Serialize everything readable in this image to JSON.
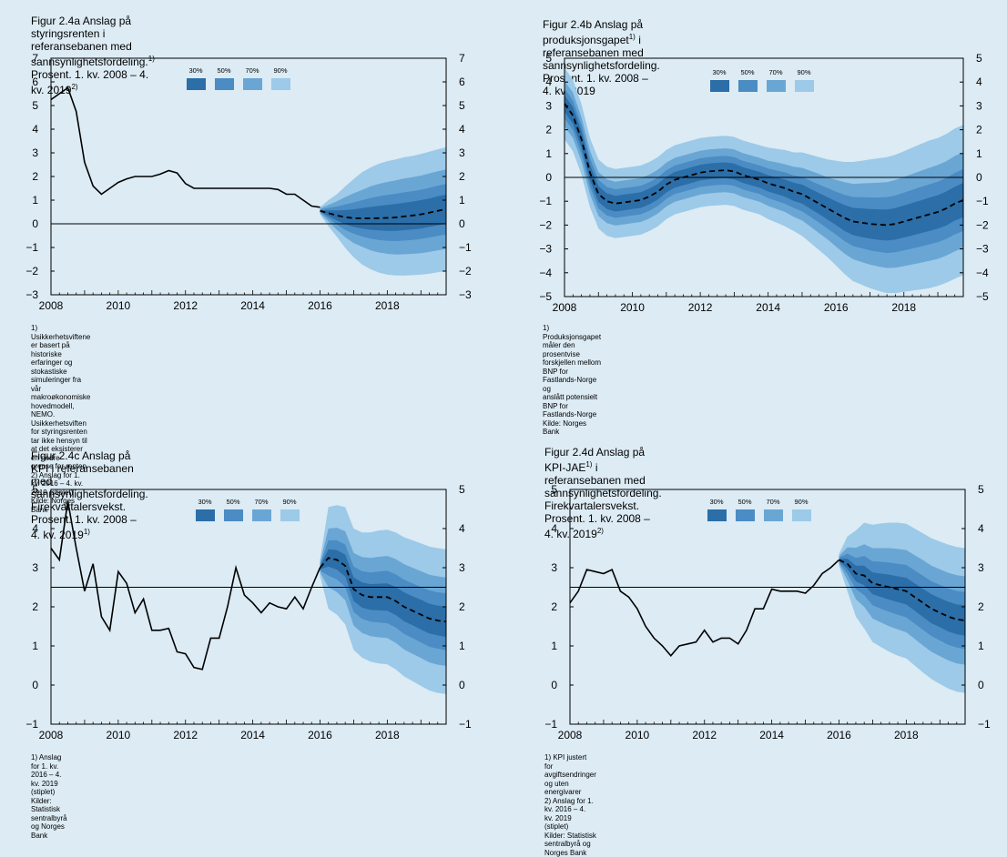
{
  "colors": {
    "background": "#dcebf4",
    "band30": "#2b6ea8",
    "band50": "#4a8cc3",
    "band70": "#6aa6d4",
    "band90": "#9ccae8",
    "line": "#000000"
  },
  "chart_data": [
    {
      "id": "a",
      "type": "area",
      "title": "Figur 2.4a Anslag på styringsrenten i referansebanen med",
      "title2_pre": "sannsynlighetsfordeling.",
      "title2_sup1": "1)",
      "title2_mid": " Prosent. 1. kv. 2008 – 4. kv. 2019",
      "title2_sup2": "2)",
      "footnotes": "1) Usikkerhetsviftene er basert på historiske erfaringer og stokastiske simuleringer fra vår makroøkonomiske\nhovedmodell, NEMO. Usikkerhetsviften for styringsrenten tar ikke hensyn til at det eksisterer en nedre\ngrense for renten\n2) Anslag for 1. kv. 2016 – 4. kv. 2019 (stiplet)\nKilde: Norges Bank",
      "legend": [
        "30%",
        "50%",
        "70%",
        "90%"
      ],
      "ylim": [
        -3,
        7
      ],
      "yticks": [
        "−3",
        "−2",
        "−1",
        "0",
        "1",
        "2",
        "3",
        "4",
        "5",
        "6",
        "7"
      ],
      "xticks": [
        "2008",
        "2010",
        "2012",
        "2014",
        "2016",
        "2018"
      ],
      "xlim": [
        2008,
        2019.75
      ],
      "refline": 0,
      "history": [
        [
          2008,
          5.25
        ],
        [
          2008.25,
          5.5
        ],
        [
          2008.5,
          5.75
        ],
        [
          2008.75,
          4.75
        ],
        [
          2009,
          2.6
        ],
        [
          2009.25,
          1.6
        ],
        [
          2009.5,
          1.25
        ],
        [
          2009.75,
          1.5
        ],
        [
          2010,
          1.75
        ],
        [
          2010.25,
          1.9
        ],
        [
          2010.5,
          2.0
        ],
        [
          2010.75,
          2.0
        ],
        [
          2011,
          2.0
        ],
        [
          2011.25,
          2.1
        ],
        [
          2011.5,
          2.25
        ],
        [
          2011.75,
          2.15
        ],
        [
          2012,
          1.7
        ],
        [
          2012.25,
          1.5
        ],
        [
          2012.5,
          1.5
        ],
        [
          2012.75,
          1.5
        ],
        [
          2013,
          1.5
        ],
        [
          2013.25,
          1.5
        ],
        [
          2013.5,
          1.5
        ],
        [
          2013.75,
          1.5
        ],
        [
          2014,
          1.5
        ],
        [
          2014.25,
          1.5
        ],
        [
          2014.5,
          1.5
        ],
        [
          2014.75,
          1.45
        ],
        [
          2015,
          1.25
        ],
        [
          2015.25,
          1.25
        ],
        [
          2015.5,
          1.0
        ],
        [
          2015.75,
          0.75
        ],
        [
          2016,
          0.7
        ]
      ],
      "forecast": {
        "x": [
          2016,
          2016.25,
          2016.5,
          2016.75,
          2017,
          2017.25,
          2017.5,
          2017.75,
          2018,
          2018.25,
          2018.5,
          2018.75,
          2019,
          2019.25,
          2019.5,
          2019.75
        ],
        "y": [
          0.55,
          0.45,
          0.35,
          0.28,
          0.24,
          0.23,
          0.23,
          0.24,
          0.25,
          0.27,
          0.31,
          0.35,
          0.4,
          0.47,
          0.55,
          0.62
        ],
        "w90": [
          0.15,
          0.55,
          0.9,
          1.3,
          1.65,
          1.95,
          2.15,
          2.3,
          2.4,
          2.45,
          2.5,
          2.52,
          2.55,
          2.58,
          2.6,
          2.62
        ],
        "w70": [
          0.1,
          0.35,
          0.6,
          0.85,
          1.05,
          1.2,
          1.35,
          1.45,
          1.52,
          1.57,
          1.6,
          1.62,
          1.64,
          1.66,
          1.67,
          1.68
        ],
        "w50": [
          0.06,
          0.22,
          0.38,
          0.54,
          0.66,
          0.77,
          0.86,
          0.92,
          0.97,
          1.0,
          1.02,
          1.03,
          1.04,
          1.05,
          1.06,
          1.07
        ],
        "w30": [
          0.03,
          0.12,
          0.21,
          0.3,
          0.37,
          0.43,
          0.48,
          0.52,
          0.55,
          0.57,
          0.58,
          0.59,
          0.6,
          0.6,
          0.61,
          0.61
        ]
      }
    },
    {
      "id": "b",
      "type": "area",
      "title_pre": "Figur 2.4b Anslag på produksjonsgapet",
      "title_sup": "1)",
      "title_post": " i referansebanen med",
      "title2": "sannsynlighetsfordeling. Prosent. 1. kv. 2008 – 4. kv. 2019",
      "footnotes": "1) Produksjonsgapet måler den prosentvise forskjellen mellom BNP for Fastlands-Norge og\nanslått potensielt BNP for Fastlands-Norge\nKilde: Norges Bank",
      "legend": [
        "30%",
        "50%",
        "70%",
        "90%"
      ],
      "ylim": [
        -5,
        5
      ],
      "yticks": [
        "−5",
        "−4",
        "−3",
        "−2",
        "−1",
        "0",
        "1",
        "2",
        "3",
        "4",
        "5"
      ],
      "xticks": [
        "2008",
        "2010",
        "2012",
        "2014",
        "2016",
        "2018"
      ],
      "xlim": [
        2008,
        2019.75
      ],
      "refline": 0,
      "history": [],
      "forecast": {
        "x": [
          2008,
          2008.25,
          2008.5,
          2008.75,
          2009,
          2009.25,
          2009.5,
          2009.75,
          2010,
          2010.25,
          2010.5,
          2010.75,
          2011,
          2011.25,
          2011.5,
          2011.75,
          2012,
          2012.25,
          2012.5,
          2012.75,
          2013,
          2013.25,
          2013.5,
          2013.75,
          2014,
          2014.25,
          2014.5,
          2014.75,
          2015,
          2015.25,
          2015.5,
          2015.75,
          2016,
          2016.25,
          2016.5,
          2016.75,
          2017,
          2017.25,
          2017.5,
          2017.75,
          2018,
          2018.25,
          2018.5,
          2018.75,
          2019,
          2019.25,
          2019.5,
          2019.75
        ],
        "y": [
          3.1,
          2.6,
          1.6,
          0.2,
          -0.7,
          -1.0,
          -1.1,
          -1.05,
          -1.0,
          -0.95,
          -0.8,
          -0.6,
          -0.3,
          -0.1,
          0.0,
          0.1,
          0.2,
          0.25,
          0.28,
          0.3,
          0.25,
          0.1,
          0.0,
          -0.1,
          -0.25,
          -0.35,
          -0.45,
          -0.6,
          -0.7,
          -0.9,
          -1.1,
          -1.3,
          -1.5,
          -1.7,
          -1.85,
          -1.9,
          -1.95,
          -1.98,
          -2.0,
          -1.95,
          -1.85,
          -1.75,
          -1.65,
          -1.55,
          -1.45,
          -1.3,
          -1.1,
          -0.95
        ],
        "w90": [
          1.5,
          1.5,
          1.48,
          1.45,
          1.45,
          1.45,
          1.45,
          1.45,
          1.45,
          1.45,
          1.45,
          1.45,
          1.45,
          1.45,
          1.45,
          1.45,
          1.45,
          1.45,
          1.45,
          1.45,
          1.45,
          1.45,
          1.45,
          1.45,
          1.5,
          1.55,
          1.6,
          1.65,
          1.75,
          1.85,
          1.95,
          2.05,
          2.2,
          2.35,
          2.5,
          2.6,
          2.7,
          2.78,
          2.85,
          2.9,
          2.95,
          3.0,
          3.05,
          3.1,
          3.1,
          3.12,
          3.15,
          3.15
        ],
        "w70": [
          0.95,
          0.95,
          0.93,
          0.92,
          0.92,
          0.92,
          0.92,
          0.92,
          0.92,
          0.92,
          0.92,
          0.92,
          0.92,
          0.92,
          0.92,
          0.92,
          0.92,
          0.92,
          0.92,
          0.92,
          0.92,
          0.92,
          0.92,
          0.92,
          0.95,
          0.98,
          1.0,
          1.05,
          1.1,
          1.17,
          1.24,
          1.3,
          1.4,
          1.5,
          1.58,
          1.65,
          1.71,
          1.76,
          1.8,
          1.84,
          1.87,
          1.9,
          1.93,
          1.95,
          1.97,
          1.98,
          2.0,
          2.0
        ],
        "w50": [
          0.62,
          0.62,
          0.61,
          0.6,
          0.6,
          0.6,
          0.6,
          0.6,
          0.6,
          0.6,
          0.6,
          0.6,
          0.6,
          0.6,
          0.6,
          0.6,
          0.6,
          0.6,
          0.6,
          0.6,
          0.6,
          0.6,
          0.6,
          0.6,
          0.62,
          0.64,
          0.66,
          0.68,
          0.72,
          0.76,
          0.8,
          0.85,
          0.9,
          0.97,
          1.03,
          1.07,
          1.11,
          1.14,
          1.17,
          1.19,
          1.21,
          1.23,
          1.25,
          1.26,
          1.27,
          1.28,
          1.29,
          1.3
        ],
        "w30": [
          0.35,
          0.35,
          0.34,
          0.33,
          0.33,
          0.33,
          0.33,
          0.33,
          0.33,
          0.33,
          0.33,
          0.33,
          0.33,
          0.33,
          0.33,
          0.33,
          0.33,
          0.33,
          0.33,
          0.33,
          0.33,
          0.33,
          0.33,
          0.33,
          0.34,
          0.35,
          0.36,
          0.38,
          0.4,
          0.42,
          0.44,
          0.47,
          0.5,
          0.54,
          0.57,
          0.6,
          0.62,
          0.64,
          0.65,
          0.66,
          0.67,
          0.68,
          0.69,
          0.7,
          0.7,
          0.71,
          0.71,
          0.72
        ]
      }
    },
    {
      "id": "c",
      "type": "area",
      "title": "Figur 2.4c Anslag på KPI i referansebanen med sannsynlighetsfordeling.",
      "title2_pre": "Firekvartalersvekst. Prosent. 1. kv. 2008 – 4. kv. 2019",
      "title2_sup1": "1)",
      "footnotes": "1) Anslag for 1. kv. 2016 – 4. kv. 2019 (stiplet)\nKilder: Statistisk sentralbyrå og Norges Bank",
      "legend": [
        "30%",
        "50%",
        "70%",
        "90%"
      ],
      "ylim": [
        -1,
        5
      ],
      "yticks": [
        "−1",
        "0",
        "1",
        "2",
        "3",
        "4",
        "5"
      ],
      "xticks": [
        "2008",
        "2010",
        "2012",
        "2014",
        "2016",
        "2018"
      ],
      "xlim": [
        2008,
        2019.75
      ],
      "refline": 2.5,
      "history": [
        [
          2008,
          3.5
        ],
        [
          2008.25,
          3.2
        ],
        [
          2008.5,
          4.7
        ],
        [
          2008.75,
          3.5
        ],
        [
          2009,
          2.4
        ],
        [
          2009.25,
          3.1
        ],
        [
          2009.5,
          1.75
        ],
        [
          2009.75,
          1.4
        ],
        [
          2010,
          2.9
        ],
        [
          2010.25,
          2.6
        ],
        [
          2010.5,
          1.85
        ],
        [
          2010.75,
          2.2
        ],
        [
          2011,
          1.4
        ],
        [
          2011.25,
          1.4
        ],
        [
          2011.5,
          1.45
        ],
        [
          2011.75,
          0.85
        ],
        [
          2012,
          0.8
        ],
        [
          2012.25,
          0.45
        ],
        [
          2012.5,
          0.4
        ],
        [
          2012.75,
          1.2
        ],
        [
          2013,
          1.2
        ],
        [
          2013.25,
          2.0
        ],
        [
          2013.5,
          3.0
        ],
        [
          2013.75,
          2.3
        ],
        [
          2014,
          2.1
        ],
        [
          2014.25,
          1.85
        ],
        [
          2014.5,
          2.1
        ],
        [
          2014.75,
          2.0
        ],
        [
          2015,
          1.95
        ],
        [
          2015.25,
          2.25
        ],
        [
          2015.5,
          1.95
        ],
        [
          2015.75,
          2.5
        ],
        [
          2016,
          3.0
        ]
      ],
      "forecast": {
        "x": [
          2016,
          2016.25,
          2016.5,
          2016.75,
          2017,
          2017.25,
          2017.5,
          2017.75,
          2018,
          2018.25,
          2018.5,
          2018.75,
          2019,
          2019.25,
          2019.5,
          2019.75
        ],
        "y": [
          3.0,
          3.25,
          3.2,
          3.05,
          2.45,
          2.3,
          2.25,
          2.25,
          2.25,
          2.15,
          2.0,
          1.9,
          1.8,
          1.7,
          1.65,
          1.62
        ],
        "w90": [
          0.2,
          1.3,
          1.4,
          1.5,
          1.55,
          1.6,
          1.65,
          1.7,
          1.72,
          1.75,
          1.78,
          1.8,
          1.82,
          1.84,
          1.85,
          1.85
        ],
        "w70": [
          0.12,
          0.75,
          0.82,
          0.88,
          0.93,
          0.97,
          1.0,
          1.03,
          1.05,
          1.07,
          1.09,
          1.1,
          1.11,
          1.12,
          1.13,
          1.13
        ],
        "w50": [
          0.08,
          0.45,
          0.5,
          0.54,
          0.58,
          0.61,
          0.63,
          0.65,
          0.67,
          0.68,
          0.69,
          0.7,
          0.71,
          0.72,
          0.72,
          0.73
        ],
        "w30": [
          0.04,
          0.22,
          0.25,
          0.28,
          0.3,
          0.32,
          0.33,
          0.34,
          0.35,
          0.36,
          0.37,
          0.37,
          0.38,
          0.38,
          0.38,
          0.39
        ]
      }
    },
    {
      "id": "d",
      "type": "area",
      "title_pre": "Figur 2.4d Anslag på KPI-JAE",
      "title_sup": "1)",
      "title_post": " i referansebanen med sannsynlighetsfordeling.",
      "title2_pre": "Firekvartalersvekst. Prosent. 1. kv. 2008 – 4. kv. 2019",
      "title2_sup1": "2)",
      "footnotes": "1) KPI justert for avgiftsendringer og uten energivarer\n2) Anslag for 1. kv. 2016 – 4. kv. 2019 (stiplet)\nKilder: Statistisk sentralbyrå og Norges Bank",
      "legend": [
        "30%",
        "50%",
        "70%",
        "90%"
      ],
      "ylim": [
        -1,
        5
      ],
      "yticks": [
        "−1",
        "0",
        "1",
        "2",
        "3",
        "4",
        "5"
      ],
      "xticks": [
        "2008",
        "2010",
        "2012",
        "2014",
        "2016",
        "2018"
      ],
      "xlim": [
        2008,
        2019.75
      ],
      "refline": 2.5,
      "history": [
        [
          2008,
          2.1
        ],
        [
          2008.25,
          2.4
        ],
        [
          2008.5,
          2.95
        ],
        [
          2008.75,
          2.9
        ],
        [
          2009,
          2.85
        ],
        [
          2009.25,
          2.95
        ],
        [
          2009.5,
          2.4
        ],
        [
          2009.75,
          2.25
        ],
        [
          2010,
          1.95
        ],
        [
          2010.25,
          1.5
        ],
        [
          2010.5,
          1.2
        ],
        [
          2010.75,
          1.0
        ],
        [
          2011,
          0.75
        ],
        [
          2011.25,
          1.0
        ],
        [
          2011.5,
          1.05
        ],
        [
          2011.75,
          1.1
        ],
        [
          2012,
          1.4
        ],
        [
          2012.25,
          1.1
        ],
        [
          2012.5,
          1.2
        ],
        [
          2012.75,
          1.2
        ],
        [
          2013,
          1.05
        ],
        [
          2013.25,
          1.4
        ],
        [
          2013.5,
          1.95
        ],
        [
          2013.75,
          1.95
        ],
        [
          2014,
          2.45
        ],
        [
          2014.25,
          2.4
        ],
        [
          2014.5,
          2.4
        ],
        [
          2014.75,
          2.4
        ],
        [
          2015,
          2.35
        ],
        [
          2015.25,
          2.55
        ],
        [
          2015.5,
          2.85
        ],
        [
          2015.75,
          3.0
        ],
        [
          2016,
          3.2
        ]
      ],
      "forecast": {
        "x": [
          2016,
          2016.25,
          2016.5,
          2016.75,
          2017,
          2017.25,
          2017.5,
          2017.75,
          2018,
          2018.25,
          2018.5,
          2018.75,
          2019,
          2019.25,
          2019.5,
          2019.75
        ],
        "y": [
          3.2,
          3.1,
          2.85,
          2.8,
          2.6,
          2.55,
          2.5,
          2.45,
          2.4,
          2.25,
          2.1,
          1.95,
          1.85,
          1.75,
          1.68,
          1.65
        ],
        "w90": [
          0.15,
          0.7,
          1.1,
          1.35,
          1.5,
          1.58,
          1.65,
          1.7,
          1.72,
          1.75,
          1.78,
          1.8,
          1.82,
          1.84,
          1.85,
          1.85
        ],
        "w70": [
          0.1,
          0.42,
          0.66,
          0.8,
          0.9,
          0.95,
          1.0,
          1.03,
          1.05,
          1.07,
          1.09,
          1.1,
          1.11,
          1.12,
          1.13,
          1.13
        ],
        "w50": [
          0.06,
          0.26,
          0.4,
          0.5,
          0.56,
          0.6,
          0.63,
          0.65,
          0.67,
          0.68,
          0.69,
          0.7,
          0.71,
          0.72,
          0.72,
          0.73
        ],
        "w30": [
          0.03,
          0.13,
          0.2,
          0.25,
          0.28,
          0.3,
          0.32,
          0.33,
          0.34,
          0.35,
          0.36,
          0.37,
          0.37,
          0.38,
          0.38,
          0.39
        ]
      }
    }
  ]
}
